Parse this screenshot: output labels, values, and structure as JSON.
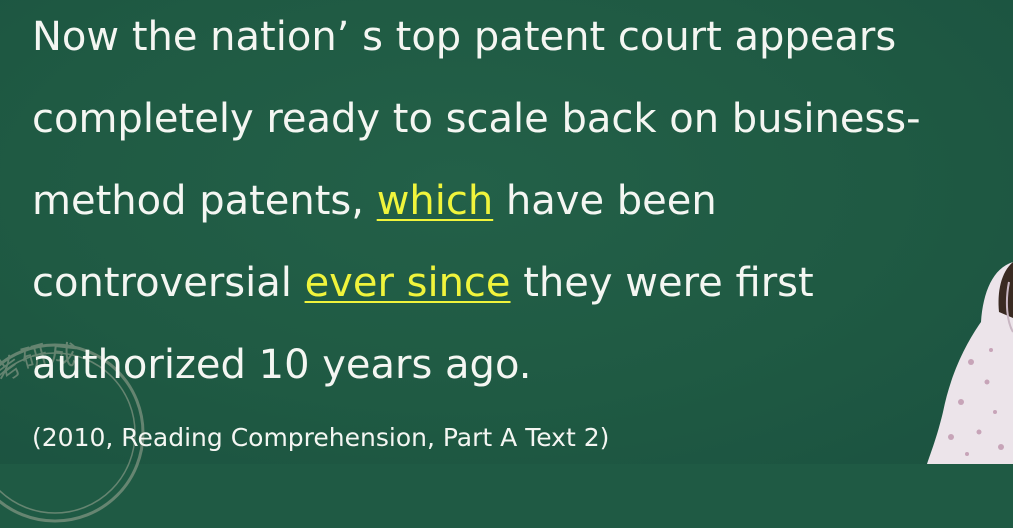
{
  "passage": {
    "line1": "Now the nation’ s top patent court appears",
    "line2": "completely ready to scale back on business-",
    "line3_before": "method patents, ",
    "line3_highlight": "which",
    "line3_after": " have been",
    "line4_before": "controversial ",
    "line4_highlight": "ever since",
    "line4_after": " they were first",
    "line5": "authorized 10 years ago."
  },
  "citation": "(2010, Reading Comprehension, Part A Text 2)",
  "watermark": {
    "text": "号考研成"
  },
  "colors": {
    "board": "#1f5a44",
    "text": "#f4f6f2",
    "highlight": "#f0f43c"
  }
}
